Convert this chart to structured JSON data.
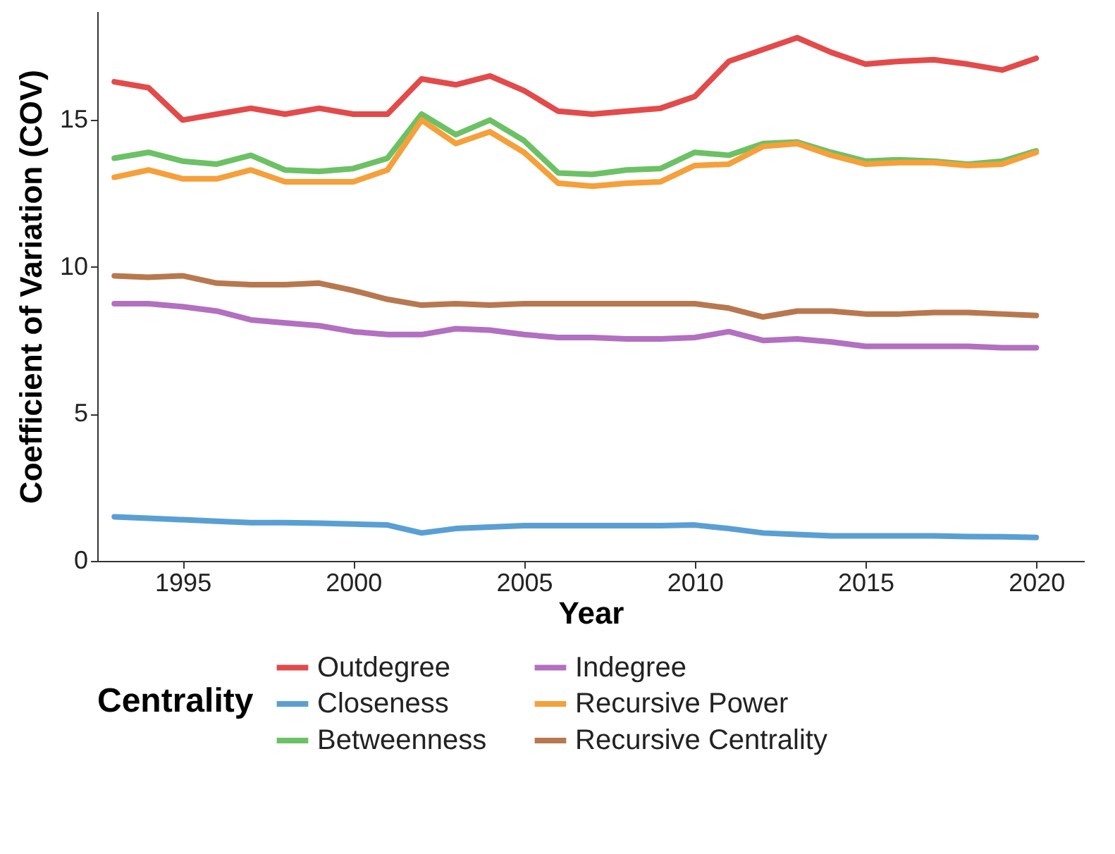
{
  "chart_data": {
    "type": "line",
    "xlabel": "Year",
    "ylabel": "Coefficient of Variation (COV)",
    "legend_title": "Centrality",
    "legend": "bottom",
    "grid": false,
    "line_style": "solid",
    "x": [
      1993,
      1994,
      1995,
      1996,
      1997,
      1998,
      1999,
      2000,
      2001,
      2002,
      2003,
      2004,
      2005,
      2006,
      2007,
      2008,
      2009,
      2010,
      2011,
      2012,
      2013,
      2014,
      2015,
      2016,
      2017,
      2018,
      2019,
      2020
    ],
    "xlim": [
      1992.5,
      2021.4
    ],
    "xticks": [
      1995,
      2000,
      2005,
      2010,
      2015,
      2020
    ],
    "ylim": [
      0,
      18.7
    ],
    "yticks": [
      0,
      5,
      10,
      15
    ],
    "series": [
      {
        "name": "Outdegree",
        "color": "#e34a4a",
        "values": [
          16.3,
          16.1,
          15.0,
          15.2,
          15.4,
          15.2,
          15.4,
          15.2,
          15.2,
          16.4,
          16.2,
          16.5,
          16.0,
          15.3,
          15.2,
          15.3,
          15.4,
          15.8,
          17.0,
          17.4,
          17.8,
          17.3,
          16.9,
          17.0,
          17.05,
          16.9,
          16.7,
          17.1
        ]
      },
      {
        "name": "Closeness",
        "color": "#5a9fd4",
        "values": [
          1.5,
          1.45,
          1.4,
          1.35,
          1.3,
          1.3,
          1.28,
          1.25,
          1.22,
          0.95,
          1.1,
          1.15,
          1.2,
          1.2,
          1.2,
          1.2,
          1.2,
          1.22,
          1.1,
          0.95,
          0.9,
          0.85,
          0.85,
          0.85,
          0.85,
          0.83,
          0.82,
          0.8
        ]
      },
      {
        "name": "Betweenness",
        "color": "#6cc164",
        "values": [
          13.7,
          13.9,
          13.6,
          13.5,
          13.8,
          13.3,
          13.25,
          13.35,
          13.7,
          15.2,
          14.5,
          15.0,
          14.3,
          13.2,
          13.15,
          13.3,
          13.35,
          13.9,
          13.8,
          14.2,
          14.25,
          13.9,
          13.6,
          13.65,
          13.6,
          13.5,
          13.6,
          13.95
        ]
      },
      {
        "name": "Indegree",
        "color": "#b36fc0",
        "values": [
          8.75,
          8.75,
          8.65,
          8.5,
          8.2,
          8.1,
          8.0,
          7.8,
          7.7,
          7.7,
          7.9,
          7.85,
          7.7,
          7.6,
          7.6,
          7.55,
          7.55,
          7.6,
          7.8,
          7.5,
          7.55,
          7.45,
          7.3,
          7.3,
          7.3,
          7.3,
          7.25,
          7.25
        ]
      },
      {
        "name": "Recursive Power",
        "color": "#f5a03a",
        "values": [
          13.05,
          13.3,
          13.0,
          13.0,
          13.3,
          12.9,
          12.9,
          12.9,
          13.3,
          15.0,
          14.2,
          14.6,
          13.9,
          12.85,
          12.75,
          12.85,
          12.9,
          13.45,
          13.5,
          14.1,
          14.2,
          13.8,
          13.5,
          13.55,
          13.55,
          13.45,
          13.5,
          13.9
        ]
      },
      {
        "name": "Recursive Centrality",
        "color": "#b8784f",
        "values": [
          9.7,
          9.65,
          9.7,
          9.45,
          9.4,
          9.4,
          9.45,
          9.2,
          8.9,
          8.7,
          8.75,
          8.7,
          8.75,
          8.75,
          8.75,
          8.75,
          8.75,
          8.75,
          8.6,
          8.3,
          8.5,
          8.5,
          8.4,
          8.4,
          8.45,
          8.45,
          8.4,
          8.35
        ]
      }
    ]
  }
}
